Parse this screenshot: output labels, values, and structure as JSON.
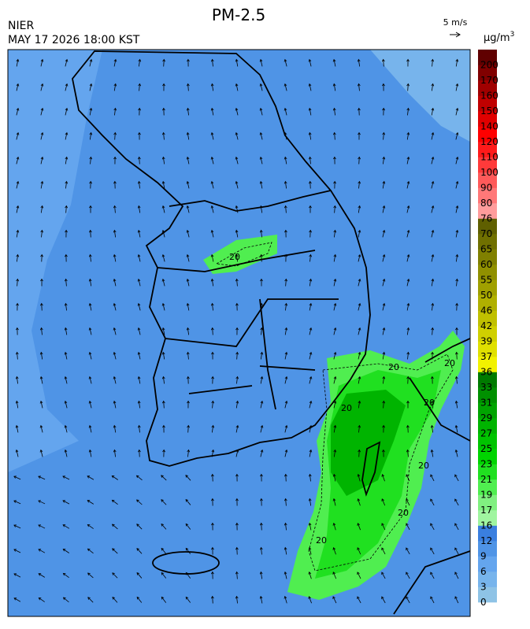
{
  "header": {
    "title": "PM-2.5",
    "source": "NIER",
    "datetime": "MAY 17 2026 18:00 KST",
    "wind_reference": "5 m/s",
    "unit": "μg/m",
    "unit_sup": "3"
  },
  "colorbar": {
    "ticks": [
      0,
      3,
      6,
      9,
      12,
      16,
      17,
      19,
      21,
      23,
      25,
      27,
      29,
      31,
      33,
      36,
      37,
      39,
      42,
      46,
      50,
      55,
      60,
      65,
      70,
      76,
      80,
      90,
      100,
      110,
      120,
      140,
      150,
      160,
      170,
      200
    ],
    "colors": [
      "#8ec3e6",
      "#77b4ec",
      "#64a5ee",
      "#4f94e6",
      "#3a7fe0",
      "#a0f5a0",
      "#80f080",
      "#50ee50",
      "#20e020",
      "#00d400",
      "#00c400",
      "#00b400",
      "#00a400",
      "#009000",
      "#007a00",
      "#f2f200",
      "#e0e000",
      "#d0d000",
      "#c0c000",
      "#b0b000",
      "#a0a000",
      "#909000",
      "#808000",
      "#707000",
      "#5f5f00",
      "#ff9c9c",
      "#ff7878",
      "#ff5a5a",
      "#ff3a3a",
      "#ff1a1a",
      "#ff0000",
      "#e00000",
      "#c00000",
      "#a00000",
      "#800000",
      "#600000"
    ]
  },
  "contour_labels": [
    "20",
    "20",
    "20",
    "20",
    "20",
    "20",
    "20",
    "20"
  ]
}
